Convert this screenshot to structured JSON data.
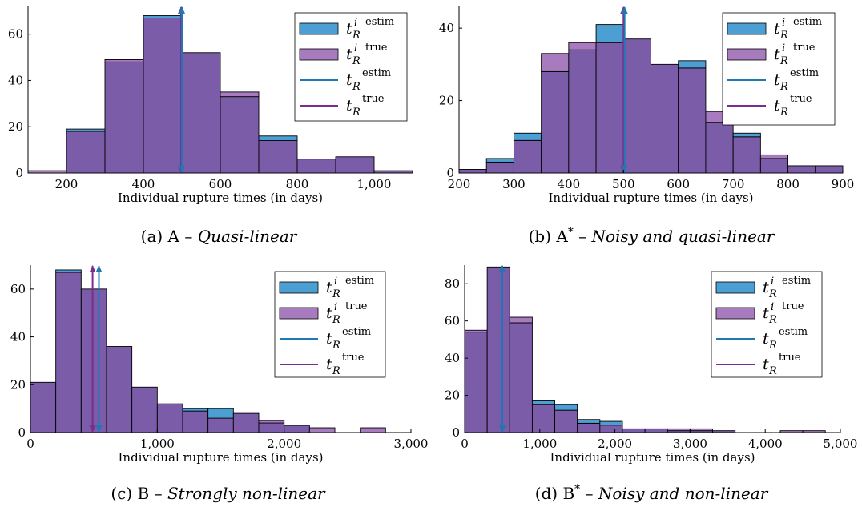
{
  "colors": {
    "estim": "#4c9fd3",
    "true_fill": "#a87bbf",
    "overlap": "#7b5ca8",
    "estim_line": "#1f77b4",
    "true_line": "#7b2d8e"
  },
  "legend": {
    "estim_hist": {
      "main": "t",
      "sup_i": "i",
      "sub": "R",
      "sup": "estim"
    },
    "true_hist": {
      "main": "t",
      "sup_i": "i",
      "sub": "R",
      "sup": "true"
    },
    "estim_line": {
      "main": "t",
      "sub": "R",
      "sup": "estim"
    },
    "true_line": {
      "main": "t",
      "sub": "R",
      "sup": "true"
    }
  },
  "chart_data": [
    {
      "type": "bar",
      "caption_prefix": "(a) A – ",
      "caption_italic": "Quasi-linear",
      "xlabel": "Individual rupture times  (in days)",
      "xlim": [
        100,
        1100
      ],
      "ylim": [
        0,
        72
      ],
      "xticks": [
        200,
        400,
        600,
        800,
        1000
      ],
      "xtick_labels": [
        "200",
        "400",
        "600",
        "800",
        "1,000"
      ],
      "yticks": [
        0,
        20,
        40,
        60
      ],
      "bin_edges": [
        100,
        200,
        300,
        400,
        500,
        600,
        700,
        800,
        900,
        1000,
        1100
      ],
      "series": [
        {
          "name": "estim",
          "values": [
            0,
            19,
            48,
            68,
            52,
            33,
            16,
            6,
            7,
            1
          ]
        },
        {
          "name": "true",
          "values": [
            1,
            18,
            49,
            67,
            52,
            35,
            14,
            6,
            7,
            1
          ]
        }
      ],
      "t_R_estim": 500,
      "t_R_true": 498
    },
    {
      "type": "bar",
      "caption_prefix": "(b) A",
      "caption_sup": "*",
      "caption_mid": " – ",
      "caption_italic": "Noisy and quasi-linear",
      "xlabel": "Individual rupture times  (in days)",
      "xlim": [
        200,
        900
      ],
      "ylim": [
        0,
        46
      ],
      "xticks": [
        200,
        300,
        400,
        500,
        600,
        700,
        800,
        900
      ],
      "xtick_labels": [
        "200",
        "300",
        "400",
        "500",
        "600",
        "700",
        "800",
        "900"
      ],
      "yticks": [
        0,
        20,
        40
      ],
      "bin_edges": [
        200,
        250,
        300,
        350,
        400,
        450,
        500,
        550,
        600,
        650,
        700,
        750,
        800,
        850,
        900
      ],
      "series": [
        {
          "name": "estim",
          "values": [
            1,
            4,
            11,
            28,
            34,
            41,
            37,
            30,
            31,
            14,
            11,
            4,
            2,
            2
          ]
        },
        {
          "name": "true",
          "values": [
            1,
            3,
            9,
            33,
            36,
            36,
            37,
            30,
            29,
            17,
            10,
            5,
            2,
            2
          ]
        }
      ],
      "t_R_estim": 502,
      "t_R_true": 500
    },
    {
      "type": "bar",
      "caption_prefix": "(c) B – ",
      "caption_italic": "Strongly non-linear",
      "xlabel": "Individual rupture times  (in days)",
      "xlim": [
        0,
        3000
      ],
      "ylim": [
        0,
        70
      ],
      "xticks": [
        0,
        1000,
        2000,
        3000
      ],
      "xtick_labels": [
        "0",
        "1,000",
        "2,000",
        "3,000"
      ],
      "yticks": [
        0,
        20,
        40,
        60
      ],
      "bin_edges": [
        0,
        200,
        400,
        600,
        800,
        1000,
        1200,
        1400,
        1600,
        1800,
        2000,
        2200,
        2400,
        2600,
        2800
      ],
      "series": [
        {
          "name": "estim",
          "values": [
            21,
            68,
            60,
            36,
            19,
            12,
            10,
            10,
            8,
            4,
            3,
            0,
            0,
            0
          ]
        },
        {
          "name": "true",
          "values": [
            21,
            67,
            60,
            36,
            19,
            12,
            9,
            6,
            8,
            5,
            3,
            2,
            0,
            2
          ]
        }
      ],
      "t_R_estim": 540,
      "t_R_true": 490
    },
    {
      "type": "bar",
      "caption_prefix": "(d) B",
      "caption_sup": "*",
      "caption_mid": " – ",
      "caption_italic": "Noisy and non-linear",
      "xlabel": "Individual rupture times  (in days)",
      "xlim": [
        0,
        5000
      ],
      "ylim": [
        0,
        90
      ],
      "xticks": [
        0,
        1000,
        2000,
        3000,
        4000,
        5000
      ],
      "xtick_labels": [
        "0",
        "1,000",
        "2,000",
        "3,000",
        "4,000",
        "5,000"
      ],
      "yticks": [
        0,
        20,
        40,
        60,
        80
      ],
      "bin_edges": [
        0,
        300,
        600,
        900,
        1200,
        1500,
        1800,
        2100,
        2400,
        2700,
        3000,
        3300,
        3600,
        3900,
        4200,
        4500,
        4800
      ],
      "series": [
        {
          "name": "estim",
          "values": [
            54,
            89,
            59,
            17,
            15,
            7,
            6,
            2,
            2,
            1,
            1,
            1,
            0,
            0,
            0,
            0
          ]
        },
        {
          "name": "true",
          "values": [
            55,
            89,
            62,
            15,
            12,
            5,
            4,
            2,
            2,
            2,
            2,
            1,
            0,
            0,
            1,
            1
          ]
        }
      ],
      "t_R_estim": 500,
      "t_R_true": 500
    }
  ]
}
